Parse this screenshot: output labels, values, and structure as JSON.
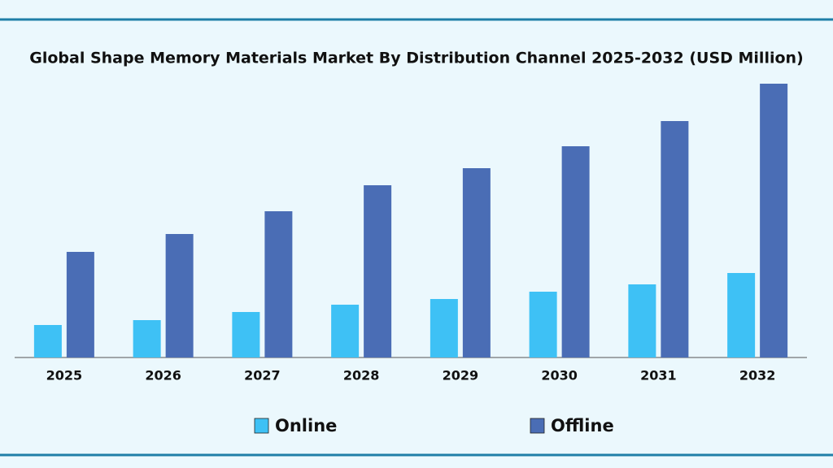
{
  "chart_data": {
    "type": "bar",
    "title": "Global Shape Memory Materials Market By Distribution Channel 2025-2032 (USD Million)",
    "categories": [
      "2025",
      "2026",
      "2027",
      "2028",
      "2029",
      "2030",
      "2031",
      "2032"
    ],
    "series": [
      {
        "name": "Online",
        "color": "#3ec1f5",
        "values": [
          40,
          46,
          56,
          65,
          72,
          81,
          90,
          104
        ]
      },
      {
        "name": "Offline",
        "color": "#4a6db5",
        "values": [
          130,
          152,
          180,
          212,
          233,
          260,
          291,
          337
        ]
      }
    ],
    "ylim": [
      0,
      340
    ]
  }
}
